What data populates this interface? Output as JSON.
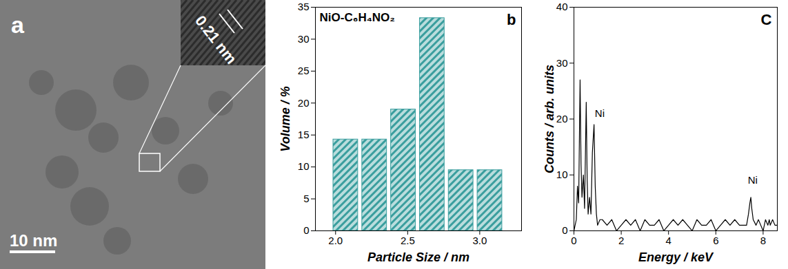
{
  "chart_data": [
    {
      "type": "image",
      "panel": "a",
      "annotations": [
        "0.21 nm"
      ],
      "scale_bar": "10 nm"
    },
    {
      "type": "histogram",
      "panel": "b",
      "title": "NiO-C₆H₄NO₂",
      "bins": [
        1.97,
        2.17,
        2.37,
        2.57,
        2.77,
        2.97,
        3.17
      ],
      "values": [
        14.3,
        14.3,
        19.0,
        33.3,
        9.5,
        9.5
      ],
      "color": "#3a9e9e",
      "xlabel": "Particle Size / nm",
      "ylabel": "Volume / %",
      "xlim": [
        1.86,
        3.29
      ],
      "xticks": [
        {
          "value": 2,
          "label": "2.0"
        },
        {
          "value": 2.5,
          "label": "2.5"
        },
        {
          "value": 3,
          "label": "3.0"
        }
      ],
      "ylim": [
        0,
        35
      ],
      "yticks": [
        0,
        5,
        10,
        15,
        20,
        25,
        30,
        35
      ]
    },
    {
      "type": "line",
      "panel": "C",
      "x": [
        0,
        0.1,
        0.15,
        0.2,
        0.26,
        0.3,
        0.34,
        0.4,
        0.45,
        0.52,
        0.56,
        0.6,
        0.66,
        0.72,
        0.78,
        0.85,
        0.9,
        0.95,
        1.0,
        1.1,
        1.2,
        1.4,
        1.6,
        1.8,
        2,
        2.2,
        2.4,
        2.6,
        2.8,
        3,
        3.2,
        3.4,
        3.6,
        3.8,
        4,
        4.2,
        4.4,
        4.6,
        4.8,
        5,
        5.2,
        5.4,
        5.6,
        5.8,
        6,
        6.2,
        6.4,
        6.6,
        6.8,
        7,
        7.2,
        7.3,
        7.38,
        7.44,
        7.48,
        7.52,
        7.58,
        7.7,
        7.8,
        7.9,
        8,
        8.1,
        8.2,
        8.26,
        8.3,
        8.4,
        8.5,
        8.6
      ],
      "values": [
        0,
        2,
        8,
        5,
        27,
        12,
        6,
        10,
        4,
        23,
        9,
        3,
        6,
        3,
        14,
        19,
        8,
        3,
        1,
        2,
        2,
        1,
        2,
        0,
        1,
        2,
        1,
        2,
        0,
        2,
        1,
        1,
        2,
        0,
        1,
        2,
        1,
        2,
        1,
        0,
        2,
        1,
        1,
        2,
        0,
        1,
        2,
        1,
        2,
        1,
        1,
        1,
        3,
        5,
        6,
        4,
        2,
        1,
        2,
        1,
        0,
        2,
        1,
        2,
        1,
        2,
        1,
        1
      ],
      "color": "#000000",
      "xlabel": "Energy / keV",
      "ylabel": "Counts / arb. units",
      "xlim": [
        0,
        8.6
      ],
      "xticks": [
        0,
        2,
        4,
        6,
        8
      ],
      "ylim": [
        0,
        40
      ],
      "yticks": [
        0,
        10,
        20,
        30,
        40
      ],
      "annotations": [
        {
          "text": "Ni",
          "x": 1.0,
          "y": 21
        },
        {
          "text": "Ni",
          "x": 7.47,
          "y": 9
        }
      ]
    }
  ]
}
